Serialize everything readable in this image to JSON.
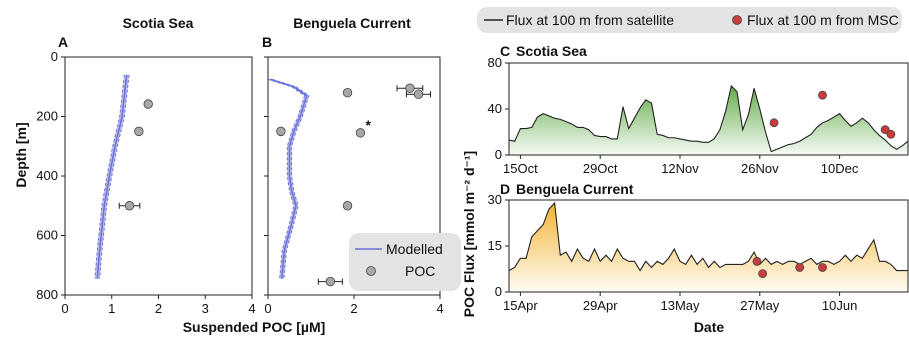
{
  "chart_data": [
    {
      "panel": "A",
      "title": "Scotia Sea",
      "type": "line",
      "ylabel": "Depth [m]",
      "xlabel": "",
      "xlim": [
        0,
        4
      ],
      "ylim": [
        800,
        0
      ],
      "xticks": [
        "0",
        "1",
        "2",
        "3",
        "4"
      ],
      "yticks": [
        "0",
        "200",
        "400",
        "600",
        "800"
      ],
      "series": [
        {
          "name": "Modelled",
          "color": "#6b72d8",
          "band_halfwidth": 0.05,
          "x": [
            1.32,
            1.22,
            1.07,
            0.95,
            0.84,
            0.74,
            0.69
          ],
          "y": [
            60,
            200,
            300,
            400,
            500,
            650,
            745
          ]
        },
        {
          "name": "POC",
          "color": "#a8a8a8",
          "x": [
            1.78,
            1.58,
            1.38
          ],
          "xerr": [
            0.07,
            0.04,
            0.22
          ],
          "y": [
            158,
            250,
            500
          ]
        }
      ]
    },
    {
      "panel": "B",
      "title": "Benguela Current",
      "type": "line",
      "ylabel": "",
      "xlabel": "",
      "xlim": [
        0,
        4
      ],
      "ylim": [
        800,
        0
      ],
      "xticks": [
        "0",
        "2",
        "4"
      ],
      "annotation": "*",
      "series": [
        {
          "name": "Modelled",
          "color": "#6b72d8",
          "band_halfwidth": 0.05,
          "x": [
            0.05,
            0.6,
            0.9,
            0.75,
            0.6,
            0.5,
            0.5,
            0.55,
            0.65,
            0.55,
            0.38,
            0.32
          ],
          "y": [
            75,
            100,
            130,
            200,
            250,
            300,
            400,
            450,
            500,
            560,
            650,
            745
          ]
        },
        {
          "name": "POC",
          "color": "#a8a8a8",
          "x": [
            3.3,
            3.5,
            1.85,
            0.3,
            2.15,
            1.85,
            1.45
          ],
          "xerr": [
            0.3,
            0.28,
            0.05,
            0.04,
            0.0,
            0.05,
            0.28
          ],
          "y": [
            105,
            125,
            120,
            250,
            255,
            500,
            755
          ]
        }
      ]
    },
    {
      "panel": "C",
      "title": "Scotia Sea",
      "type": "area",
      "xlabel": "",
      "ylabel": "",
      "xlim": [
        0,
        70
      ],
      "ylim": [
        0,
        80
      ],
      "xticks": [
        "15Oct",
        "29Oct",
        "12Nov",
        "26Nov",
        "10Dec"
      ],
      "yticks": [
        "0",
        "40",
        "80"
      ],
      "series": [
        {
          "name": "Flux at 100 m from satellite",
          "color": "#5da843",
          "x": [
            0,
            1,
            2,
            3,
            4,
            5,
            6,
            7,
            8,
            9,
            10,
            11,
            12,
            13,
            14,
            15,
            16,
            17,
            18,
            19,
            20,
            21,
            22,
            23,
            24,
            25,
            26,
            27,
            28,
            29,
            30,
            31,
            32,
            33,
            34,
            35,
            36,
            37,
            38,
            39,
            40,
            41,
            42,
            43,
            44,
            45,
            46,
            47,
            48,
            49,
            50,
            51,
            52,
            53,
            54,
            55,
            56,
            57,
            58,
            59,
            60,
            61,
            62,
            63,
            64,
            65,
            66,
            67,
            68,
            69,
            70
          ],
          "y": [
            13,
            12,
            23,
            23,
            24,
            33,
            36,
            34,
            32,
            31,
            29,
            27,
            24,
            24,
            22,
            17,
            16,
            16,
            14,
            14,
            42,
            23,
            32,
            41,
            48,
            45,
            18,
            17,
            15,
            15,
            14,
            13,
            12,
            12,
            11,
            11,
            14,
            22,
            38,
            60,
            55,
            22,
            35,
            58,
            40,
            20,
            3,
            5,
            7,
            9,
            10,
            12,
            15,
            18,
            24,
            28,
            30,
            33,
            36,
            30,
            25,
            28,
            32,
            28,
            22,
            17,
            13,
            8,
            5,
            8,
            12
          ]
        },
        {
          "name": "Flux at 100 m from MSC",
          "color": "#c83c3c",
          "x": [
            46.5,
            55,
            66,
            67
          ],
          "y": [
            28,
            52,
            22,
            18
          ]
        }
      ]
    },
    {
      "panel": "D",
      "title": "Benguela Current",
      "type": "area",
      "xlabel": "Date",
      "ylabel": "POC Flux [mmol m⁻² d⁻¹]",
      "xlim": [
        0,
        70
      ],
      "ylim": [
        0,
        30
      ],
      "xticks": [
        "15Apr",
        "29Apr",
        "13May",
        "27May",
        "10Jun"
      ],
      "yticks": [
        "0",
        "15",
        "30"
      ],
      "series": [
        {
          "name": "Flux at 100 m from satellite",
          "color": "#f2b02a",
          "x": [
            0,
            1,
            2,
            3,
            4,
            5,
            6,
            7,
            8,
            9,
            10,
            11,
            12,
            13,
            14,
            15,
            16,
            17,
            18,
            19,
            20,
            21,
            22,
            23,
            24,
            25,
            26,
            27,
            28,
            29,
            30,
            31,
            32,
            33,
            34,
            35,
            36,
            37,
            38,
            39,
            40,
            41,
            42,
            43,
            44,
            45,
            46,
            47,
            48,
            49,
            50,
            51,
            52,
            53,
            54,
            55,
            56,
            57,
            58,
            59,
            60,
            61,
            62,
            63,
            64,
            65,
            66,
            67,
            68,
            69,
            70
          ],
          "y": [
            7,
            8,
            11,
            11,
            18,
            20,
            22,
            27,
            29,
            12,
            13,
            10,
            14,
            11,
            10,
            14,
            10,
            12,
            10,
            14,
            11,
            10,
            10,
            7,
            10,
            8,
            10,
            9,
            11,
            14,
            10,
            9,
            12,
            9,
            11,
            8,
            10,
            8,
            9,
            9,
            9,
            9,
            10,
            13,
            9,
            11,
            9,
            10,
            9,
            10,
            10,
            9,
            10,
            11,
            9,
            10,
            10,
            9,
            10,
            12,
            10,
            12,
            11,
            14,
            17,
            10,
            10,
            9,
            7,
            7,
            7
          ]
        },
        {
          "name": "Flux at 100 m from MSC",
          "color": "#c83c3c",
          "x": [
            43.5,
            44.5,
            51,
            55
          ],
          "y": [
            10,
            6,
            8,
            8
          ]
        }
      ]
    }
  ],
  "labels": {
    "shared_xlabel_ab": "Suspended POC [µM]"
  },
  "legend_ab": {
    "modelled": "Modelled",
    "poc": "POC"
  },
  "legend_cd": {
    "satellite": "Flux at 100 m from satellite",
    "msc": "Flux at 100 m from MSC"
  }
}
